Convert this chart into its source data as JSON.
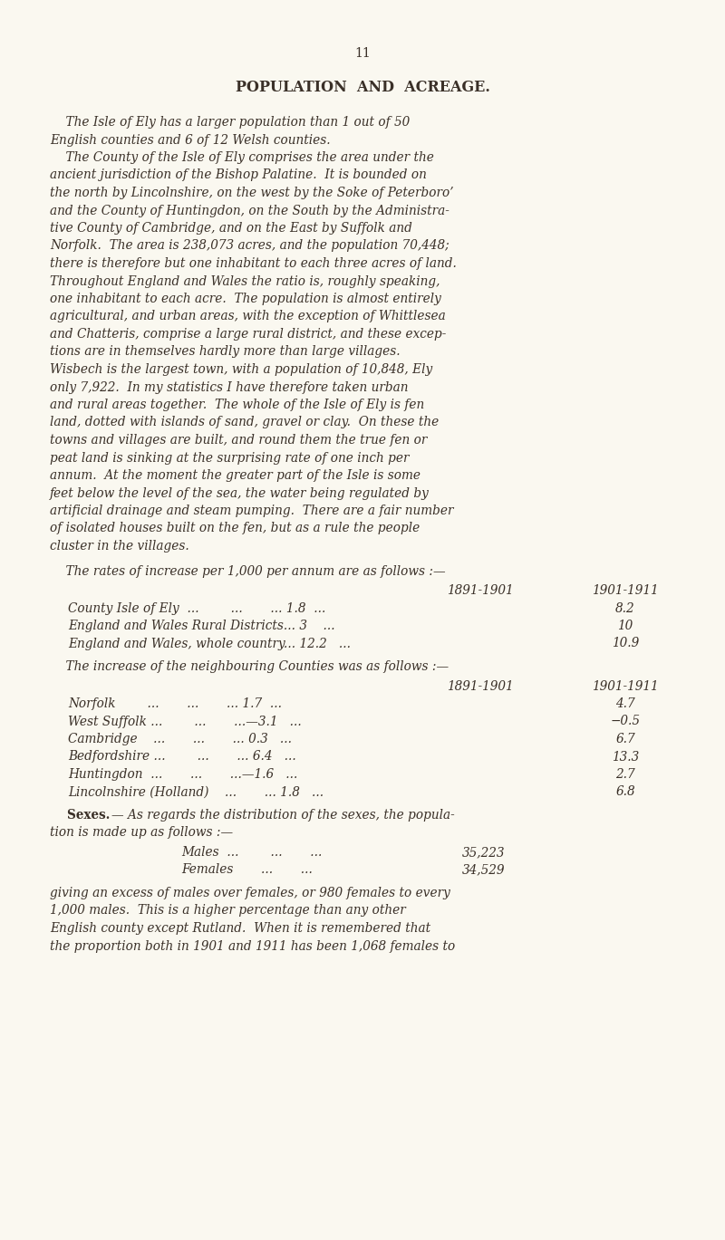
{
  "background_color": "#faf8f0",
  "text_color": "#3a3028",
  "page_number": "11",
  "title": "POPULATION  AND  ACREAGE.",
  "body_lines": [
    "    The Isle of Ely has a larger population than 1 out of 50",
    "English counties and 6 of 12 Welsh counties.",
    "    The County of the Isle of Ely comprises the area under the",
    "ancient jurisdiction of the Bishop Palatine.  It is bounded on",
    "the north by Lincolnshire, on the west by the Soke of Peterboro’",
    "and the County of Huntingdon, on the South by the Administra-",
    "tive County of Cambridge, and on the East by Suffolk and",
    "Norfolk.  The area is 238,073 acres, and the population 70,448;",
    "there is therefore but one inhabitant to each three acres of land.",
    "Throughout England and Wales the ratio is, roughly speaking,",
    "one inhabitant to each acre.  The population is almost entirely",
    "agricultural, and urban areas, with the exception of Whittlesea",
    "and Chatteris, comprise a large rural district, and these excep-",
    "tions are in themselves hardly more than large villages.",
    "Wisbech is the largest town, with a population of 10,848, Ely",
    "only 7,922.  In my statistics I have therefore taken urban",
    "and rural areas together.  The whole of the Isle of Ely is fen",
    "land, dotted with islands of sand, gravel or clay.  On these the",
    "towns and villages are built, and round them the true fen or",
    "peat land is sinking at the surprising rate of one inch per",
    "annum.  At the moment the greater part of the Isle is some",
    "feet below the level of the sea, the water being regulated by",
    "artificial drainage and steam pumping.  There are a fair number",
    "of isolated houses built on the fen, but as a rule the people",
    "cluster in the villages."
  ],
  "rates_intro": "    The rates of increase per 1,000 per annum are as follows :—",
  "rates_header_col1": "1891-1901",
  "rates_header_col2": "1901-1911",
  "rates_rows": [
    [
      "County Isle of Ely  ...        ...       ... 1.8  ...",
      "8.2"
    ],
    [
      "England and Wales Rural Districts... 3    ...",
      "10"
    ],
    [
      "England and Wales, whole country... 12.2   ...",
      "10.9"
    ]
  ],
  "neighbours_intro": "    The increase of the neighbouring Counties was as follows :—",
  "neighbours_header_col1": "1891-1901",
  "neighbours_header_col2": "1901-1911",
  "neighbours_rows": [
    [
      "Norfolk        ...       ...       ... 1.7  ...",
      "4.7"
    ],
    [
      "West Suffolk ...        ...       ...—3.1   ...",
      "−0.5"
    ],
    [
      "Cambridge    ...       ...       ... 0.3   ...",
      "6.7"
    ],
    [
      "Bedfordshire ...        ...       ... 6.4   ...",
      "13.3"
    ],
    [
      "Huntingdon  ...       ...       ...—1.6   ...",
      "2.7"
    ],
    [
      "Lincolnshire (Holland)    ...       ... 1.8   ...",
      "6.8"
    ]
  ],
  "sexes_intro_bold": "Sexes.",
  "sexes_intro_rest": "— As regards the distribution of the sexes, the popula-",
  "sexes_line2": "tion is made up as follows :—",
  "males_label": "Males  ...        ...       ...",
  "males_value": "35,223",
  "females_label": "Females       ...       ...",
  "females_value": "34,529",
  "closing_lines": [
    "giving an excess of males over females, or 980 females to every",
    "1,000 males.  This is a higher percentage than any other",
    "English county except Rutland.  When it is remembered that",
    "the proportion both in 1901 and 1911 has been 1,068 females to"
  ]
}
